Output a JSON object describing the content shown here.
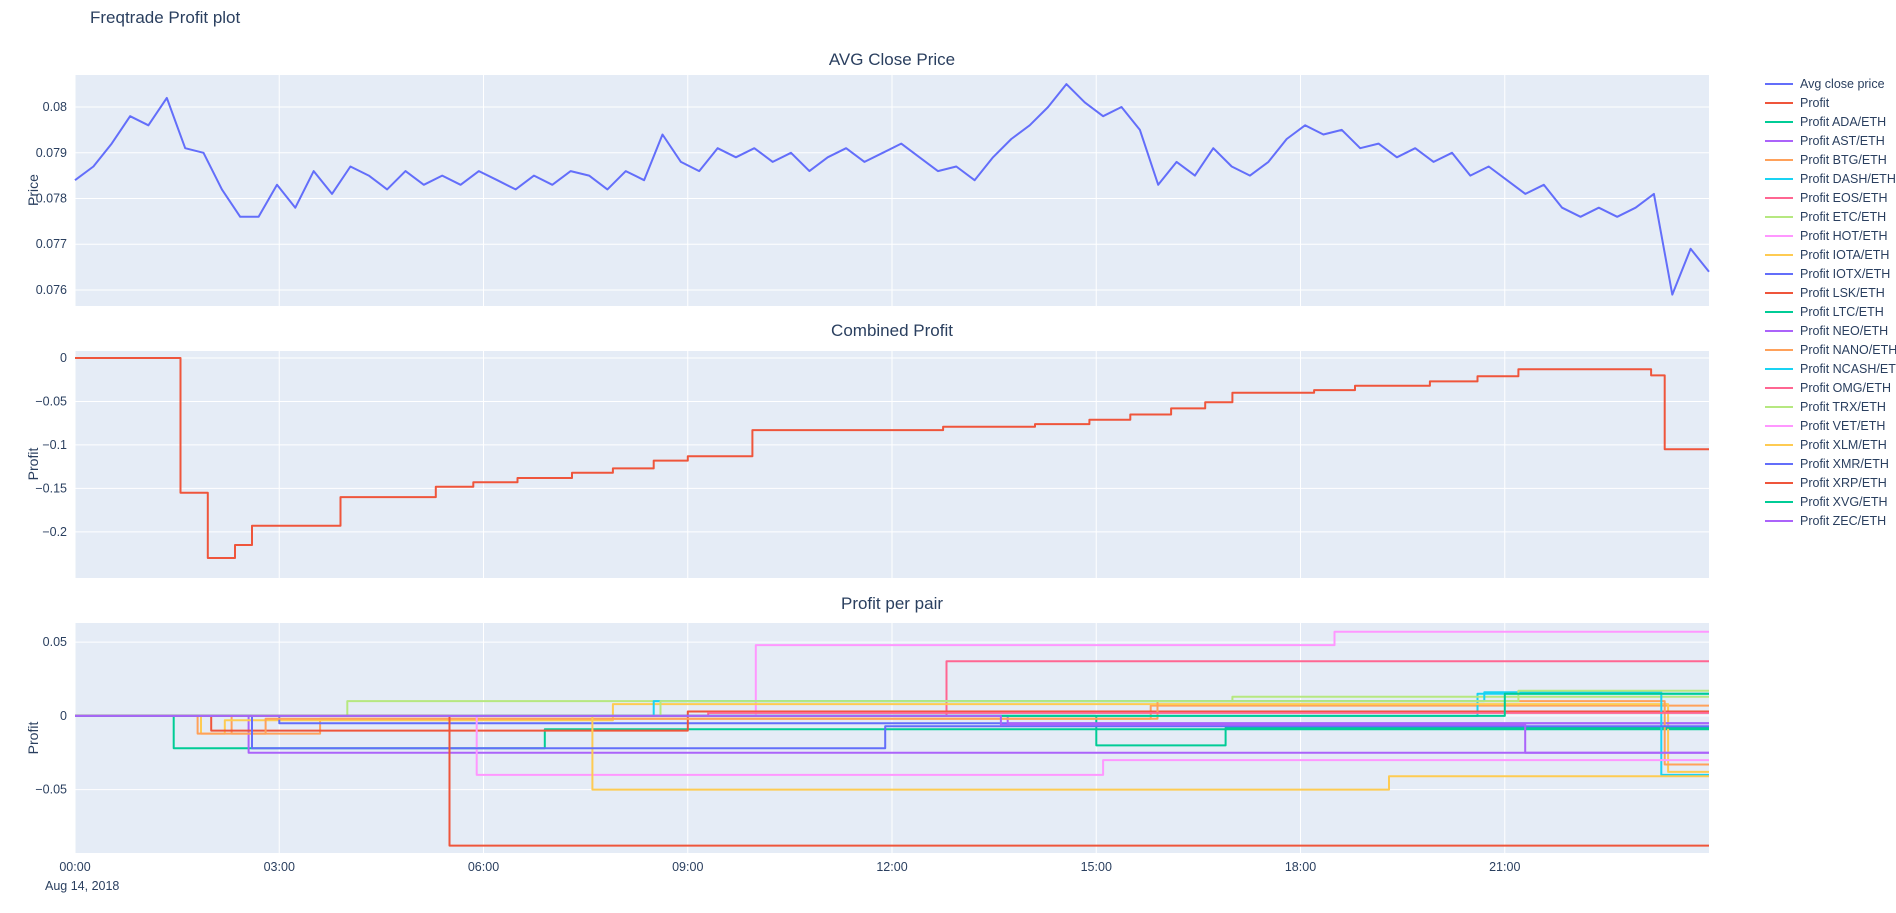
{
  "page": {
    "title": "Freqtrade Profit plot",
    "date_label": "Aug 14, 2018"
  },
  "colors": {
    "text": "#2a3f5f",
    "plot_bg": "#E5ECF6",
    "grid": "#ffffff",
    "paper_bg": "#ffffff",
    "price_line": "#636efa",
    "profit_line": "#EF553B"
  },
  "x_axis": {
    "range": [
      0,
      24
    ],
    "tick_hours": [
      0,
      3,
      6,
      9,
      12,
      15,
      18,
      21
    ],
    "tick_labels": [
      "00:00",
      "03:00",
      "06:00",
      "09:00",
      "12:00",
      "15:00",
      "18:00",
      "21:00"
    ]
  },
  "chart_data": [
    {
      "type": "line",
      "title": "AVG Close Price",
      "ylabel": "Price",
      "ylim": [
        0.07565,
        0.0807
      ],
      "yticks": [
        0.076,
        0.077,
        0.078,
        0.079,
        0.08
      ],
      "ytick_labels": [
        "0.076",
        "0.077",
        "0.078",
        "0.079",
        "0.08"
      ],
      "series": [
        {
          "name": "Avg close price",
          "color": "#636efa",
          "mode": "linear",
          "values": [
            0.0784,
            0.0787,
            0.0792,
            0.0798,
            0.0796,
            0.0802,
            0.0791,
            0.079,
            0.0782,
            0.0776,
            0.0776,
            0.0783,
            0.0778,
            0.0786,
            0.0781,
            0.0787,
            0.0785,
            0.0782,
            0.0786,
            0.0783,
            0.0785,
            0.0783,
            0.0786,
            0.0784,
            0.0782,
            0.0785,
            0.0783,
            0.0786,
            0.0785,
            0.0782,
            0.0786,
            0.0784,
            0.0794,
            0.0788,
            0.0786,
            0.0791,
            0.0789,
            0.0791,
            0.0788,
            0.079,
            0.0786,
            0.0789,
            0.0791,
            0.0788,
            0.079,
            0.0792,
            0.0789,
            0.0786,
            0.0787,
            0.0784,
            0.0789,
            0.0793,
            0.0796,
            0.08,
            0.0805,
            0.0801,
            0.0798,
            0.08,
            0.0795,
            0.0783,
            0.0788,
            0.0785,
            0.0791,
            0.0787,
            0.0785,
            0.0788,
            0.0793,
            0.0796,
            0.0794,
            0.0795,
            0.0791,
            0.0792,
            0.0789,
            0.0791,
            0.0788,
            0.079,
            0.0785,
            0.0787,
            0.0784,
            0.0781,
            0.0783,
            0.0778,
            0.0776,
            0.0778,
            0.0776,
            0.0778,
            0.0781,
            0.0759,
            0.0769,
            0.0764
          ]
        }
      ]
    },
    {
      "type": "line",
      "title": "Combined Profit",
      "ylabel": "Profit",
      "ylim": [
        -0.253,
        0.008
      ],
      "yticks": [
        0,
        -0.05,
        -0.1,
        -0.15,
        -0.2
      ],
      "ytick_labels": [
        "0",
        "−0.05",
        "−0.1",
        "−0.15",
        "−0.2"
      ],
      "series": [
        {
          "name": "Profit",
          "color": "#EF553B",
          "mode": "step",
          "points": [
            [
              0,
              0
            ],
            [
              1.55,
              -0.155
            ],
            [
              1.95,
              -0.23
            ],
            [
              2.35,
              -0.215
            ],
            [
              2.6,
              -0.193
            ],
            [
              3.9,
              -0.16
            ],
            [
              5.3,
              -0.148
            ],
            [
              5.85,
              -0.143
            ],
            [
              6.5,
              -0.138
            ],
            [
              7.3,
              -0.132
            ],
            [
              7.9,
              -0.127
            ],
            [
              8.5,
              -0.118
            ],
            [
              9.0,
              -0.113
            ],
            [
              9.95,
              -0.083
            ],
            [
              12.75,
              -0.079
            ],
            [
              14.1,
              -0.076
            ],
            [
              14.9,
              -0.071
            ],
            [
              15.5,
              -0.065
            ],
            [
              16.1,
              -0.058
            ],
            [
              16.6,
              -0.051
            ],
            [
              17.0,
              -0.04
            ],
            [
              18.2,
              -0.037
            ],
            [
              18.8,
              -0.032
            ],
            [
              19.9,
              -0.027
            ],
            [
              20.6,
              -0.021
            ],
            [
              21.2,
              -0.013
            ],
            [
              23.15,
              -0.02
            ],
            [
              23.35,
              -0.105
            ],
            [
              24,
              -0.105
            ]
          ]
        }
      ]
    },
    {
      "type": "line",
      "title": "Profit per pair",
      "ylabel": "Profit",
      "ylim": [
        -0.093,
        0.063
      ],
      "yticks": [
        0.05,
        0,
        -0.05
      ],
      "ytick_labels": [
        "0.05",
        "0",
        "−0.05"
      ],
      "series": [
        {
          "name": "Profit ADA/ETH",
          "color": "#00cc96",
          "mode": "step",
          "points": [
            [
              0,
              0
            ],
            [
              1.45,
              -0.022
            ],
            [
              6.9,
              -0.009
            ],
            [
              24,
              -0.009
            ]
          ]
        },
        {
          "name": "Profit AST/ETH",
          "color": "#ab63fa",
          "mode": "step",
          "points": [
            [
              0,
              0
            ],
            [
              2.55,
              -0.025
            ],
            [
              24,
              -0.025
            ]
          ]
        },
        {
          "name": "Profit BTG/ETH",
          "color": "#FFA15A",
          "mode": "step",
          "points": [
            [
              0,
              0
            ],
            [
              2.3,
              -0.012
            ],
            [
              3.6,
              -0.002
            ],
            [
              15.8,
              0.007
            ],
            [
              24,
              0.007
            ]
          ]
        },
        {
          "name": "Profit DASH/ETH",
          "color": "#19d3f3",
          "mode": "step",
          "points": [
            [
              0,
              0
            ],
            [
              20.6,
              0.015
            ],
            [
              24,
              0.015
            ]
          ]
        },
        {
          "name": "Profit EOS/ETH",
          "color": "#FF6692",
          "mode": "step",
          "points": [
            [
              0,
              0
            ],
            [
              12.8,
              0.037
            ],
            [
              24,
              0.037
            ]
          ]
        },
        {
          "name": "Profit ETC/ETH",
          "color": "#B6E880",
          "mode": "step",
          "points": [
            [
              0,
              0
            ],
            [
              4.0,
              0.01
            ],
            [
              17.0,
              0.013
            ],
            [
              24,
              0.013
            ]
          ]
        },
        {
          "name": "Profit HOT/ETH",
          "color": "#FF97FF",
          "mode": "step",
          "points": [
            [
              0,
              0
            ],
            [
              10.0,
              0.048
            ],
            [
              18.5,
              0.057
            ],
            [
              24,
              0.057
            ]
          ]
        },
        {
          "name": "Profit IOTA/ETH",
          "color": "#FECB52",
          "mode": "step",
          "points": [
            [
              0,
              0
            ],
            [
              1.85,
              -0.012
            ],
            [
              2.2,
              -0.003
            ],
            [
              7.9,
              0.008
            ],
            [
              23.4,
              -0.038
            ],
            [
              24,
              -0.038
            ]
          ]
        },
        {
          "name": "Profit IOTX/ETH",
          "color": "#636efa",
          "mode": "step",
          "points": [
            [
              0,
              0
            ],
            [
              3.0,
              -0.005
            ],
            [
              24,
              -0.005
            ]
          ]
        },
        {
          "name": "Profit LSK/ETH",
          "color": "#EF553B",
          "mode": "step",
          "points": [
            [
              0,
              0
            ],
            [
              2.0,
              -0.01
            ],
            [
              9.0,
              0.003
            ],
            [
              24,
              0.003
            ]
          ]
        },
        {
          "name": "Profit LTC/ETH",
          "color": "#00cc96",
          "mode": "step",
          "points": [
            [
              0,
              0
            ],
            [
              15.0,
              -0.02
            ],
            [
              16.9,
              -0.008
            ],
            [
              24,
              -0.008
            ]
          ]
        },
        {
          "name": "Profit NEO/ETH",
          "color": "#ab63fa",
          "mode": "step",
          "points": [
            [
              0,
              0
            ],
            [
              13.7,
              -0.005
            ],
            [
              24,
              -0.005
            ]
          ]
        },
        {
          "name": "Profit NANO/ETH",
          "color": "#FFA15A",
          "mode": "step",
          "points": [
            [
              0,
              0
            ],
            [
              1.8,
              -0.012
            ],
            [
              2.8,
              -0.002
            ],
            [
              15.9,
              0.01
            ],
            [
              23.35,
              -0.033
            ],
            [
              24,
              -0.033
            ]
          ]
        },
        {
          "name": "Profit NCASH/ETH",
          "color": "#19d3f3",
          "mode": "step",
          "points": [
            [
              0,
              0
            ],
            [
              8.5,
              0.01
            ],
            [
              20.7,
              0.016
            ],
            [
              23.3,
              -0.04
            ],
            [
              24,
              -0.04
            ]
          ]
        },
        {
          "name": "Profit OMG/ETH",
          "color": "#FF6692",
          "mode": "step",
          "points": [
            [
              0,
              0
            ],
            [
              9.3,
              0.002
            ],
            [
              24,
              0.002
            ]
          ]
        },
        {
          "name": "Profit TRX/ETH",
          "color": "#B6E880",
          "mode": "step",
          "points": [
            [
              0,
              0
            ],
            [
              8.6,
              0.01
            ],
            [
              21.2,
              0.017
            ],
            [
              24,
              0.017
            ]
          ]
        },
        {
          "name": "Profit VET/ETH",
          "color": "#FF97FF",
          "mode": "step",
          "points": [
            [
              0,
              0
            ],
            [
              5.9,
              -0.04
            ],
            [
              15.1,
              -0.03
            ],
            [
              24,
              -0.03
            ]
          ]
        },
        {
          "name": "Profit XLM/ETH",
          "color": "#FECB52",
          "mode": "step",
          "points": [
            [
              0,
              0
            ],
            [
              7.6,
              -0.05
            ],
            [
              19.3,
              -0.041
            ],
            [
              24,
              -0.041
            ]
          ]
        },
        {
          "name": "Profit XMR/ETH",
          "color": "#636efa",
          "mode": "step",
          "points": [
            [
              0,
              0
            ],
            [
              2.6,
              -0.022
            ],
            [
              11.9,
              -0.007
            ],
            [
              24,
              -0.007
            ]
          ]
        },
        {
          "name": "Profit XRP/ETH",
          "color": "#EF553B",
          "mode": "step",
          "points": [
            [
              0,
              0
            ],
            [
              5.5,
              -0.088
            ],
            [
              24,
              -0.088
            ]
          ]
        },
        {
          "name": "Profit XVG/ETH",
          "color": "#00cc96",
          "mode": "step",
          "points": [
            [
              0,
              0
            ],
            [
              21.0,
              0.015
            ],
            [
              24,
              0.015
            ]
          ]
        },
        {
          "name": "Profit ZEC/ETH",
          "color": "#ab63fa",
          "mode": "step",
          "points": [
            [
              0,
              0
            ],
            [
              13.6,
              -0.006
            ],
            [
              21.3,
              -0.025
            ],
            [
              24,
              -0.025
            ]
          ]
        }
      ]
    }
  ],
  "legend": {
    "items": [
      {
        "label": "Avg close price",
        "color": "#636efa"
      },
      {
        "label": "Profit",
        "color": "#EF553B"
      },
      {
        "label": "Profit ADA/ETH",
        "color": "#00cc96"
      },
      {
        "label": "Profit AST/ETH",
        "color": "#ab63fa"
      },
      {
        "label": "Profit BTG/ETH",
        "color": "#FFA15A"
      },
      {
        "label": "Profit DASH/ETH",
        "color": "#19d3f3"
      },
      {
        "label": "Profit EOS/ETH",
        "color": "#FF6692"
      },
      {
        "label": "Profit ETC/ETH",
        "color": "#B6E880"
      },
      {
        "label": "Profit HOT/ETH",
        "color": "#FF97FF"
      },
      {
        "label": "Profit IOTA/ETH",
        "color": "#FECB52"
      },
      {
        "label": "Profit IOTX/ETH",
        "color": "#636efa"
      },
      {
        "label": "Profit LSK/ETH",
        "color": "#EF553B"
      },
      {
        "label": "Profit LTC/ETH",
        "color": "#00cc96"
      },
      {
        "label": "Profit NEO/ETH",
        "color": "#ab63fa"
      },
      {
        "label": "Profit NANO/ETH",
        "color": "#FFA15A"
      },
      {
        "label": "Profit NCASH/ETH",
        "color": "#19d3f3"
      },
      {
        "label": "Profit OMG/ETH",
        "color": "#FF6692"
      },
      {
        "label": "Profit TRX/ETH",
        "color": "#B6E880"
      },
      {
        "label": "Profit VET/ETH",
        "color": "#FF97FF"
      },
      {
        "label": "Profit XLM/ETH",
        "color": "#FECB52"
      },
      {
        "label": "Profit XMR/ETH",
        "color": "#636efa"
      },
      {
        "label": "Profit XRP/ETH",
        "color": "#EF553B"
      },
      {
        "label": "Profit XVG/ETH",
        "color": "#00cc96"
      },
      {
        "label": "Profit ZEC/ETH",
        "color": "#ab63fa"
      }
    ]
  }
}
